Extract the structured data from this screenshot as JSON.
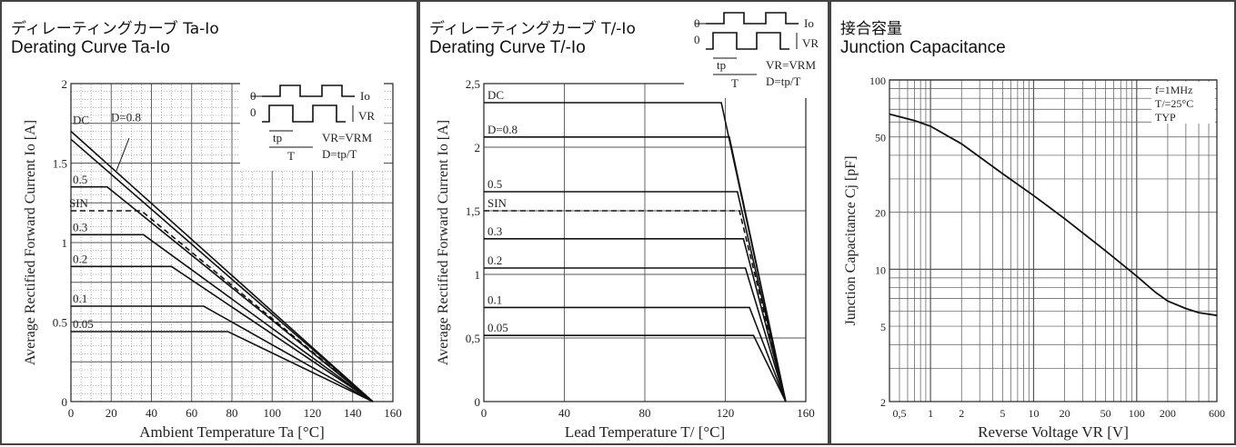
{
  "panels": {
    "ta": {
      "title_jp": "ディレーティングカーブ",
      "title_jp_suffix": "Ta-Io",
      "title_en": "Derating Curve Ta-Io"
    },
    "tl": {
      "title_jp": "ディレーティングカーブ",
      "title_jp_suffix": "T/-Io",
      "title_en": "Derating Curve T/-Io"
    },
    "cj": {
      "title_jp": "接合容量",
      "title_en": "Junction Capacitance"
    }
  },
  "inset": {
    "io": "Io",
    "vr": "VR",
    "tp": "tp",
    "t": "T",
    "zero": "0",
    "vr_eq": "VR=VRM",
    "d_eq": "D=tp/T"
  },
  "chart_data": [
    {
      "type": "line",
      "title": "Derating Curve Ta-Io",
      "xlabel": "Ambient Temperature  Ta [°C]",
      "ylabel": "Average Rectified Forward Current  Io [A]",
      "xlim": [
        0,
        160
      ],
      "ylim": [
        0,
        2
      ],
      "xticks": [
        0,
        20,
        40,
        60,
        80,
        100,
        120,
        140,
        160
      ],
      "yticks": [
        0,
        0.5,
        1,
        1.5,
        2
      ],
      "ytick_labels": [
        "0",
        "0.5",
        "1",
        "1.5",
        "2"
      ],
      "grid": true,
      "series": [
        {
          "name": "DC",
          "points": [
            [
              0,
              1.7
            ],
            [
              150,
              0
            ]
          ]
        },
        {
          "name": "D=0.8",
          "points": [
            [
              0,
              1.65
            ],
            [
              150,
              0
            ]
          ]
        },
        {
          "name": "0.5",
          "points": [
            [
              0,
              1.35
            ],
            [
              18,
              1.35
            ],
            [
              150,
              0
            ]
          ]
        },
        {
          "name": "SIN",
          "dashed": true,
          "points": [
            [
              0,
              1.2
            ],
            [
              35,
              1.2
            ],
            [
              150,
              0
            ]
          ]
        },
        {
          "name": "0.3",
          "points": [
            [
              0,
              1.05
            ],
            [
              36,
              1.05
            ],
            [
              150,
              0
            ]
          ]
        },
        {
          "name": "0.2",
          "points": [
            [
              0,
              0.85
            ],
            [
              50,
              0.85
            ],
            [
              150,
              0
            ]
          ]
        },
        {
          "name": "0.1",
          "points": [
            [
              0,
              0.6
            ],
            [
              66,
              0.6
            ],
            [
              150,
              0
            ]
          ]
        },
        {
          "name": "0.05",
          "points": [
            [
              0,
              0.44
            ],
            [
              78,
              0.44
            ],
            [
              150,
              0
            ]
          ]
        }
      ]
    },
    {
      "type": "line",
      "title": "Derating Curve T/-Io",
      "xlabel": "Lead Temperature  T/ [°C]",
      "ylabel": "Average Rectified Forward Current  Io [A]",
      "xlim": [
        0,
        160
      ],
      "ylim": [
        0,
        2.5
      ],
      "xticks": [
        0,
        40,
        80,
        120,
        160
      ],
      "yticks": [
        0,
        0.5,
        1,
        1.5,
        2,
        2.5
      ],
      "ytick_labels": [
        "0",
        "0,5",
        "1",
        "1,5",
        "2",
        "2,5"
      ],
      "grid": true,
      "series": [
        {
          "name": "DC",
          "points": [
            [
              0,
              2.35
            ],
            [
              118,
              2.35
            ],
            [
              150,
              0
            ]
          ]
        },
        {
          "name": "D=0.8",
          "points": [
            [
              0,
              2.08
            ],
            [
              122,
              2.08
            ],
            [
              150,
              0
            ]
          ]
        },
        {
          "name": "0.5",
          "points": [
            [
              0,
              1.65
            ],
            [
              126,
              1.65
            ],
            [
              150,
              0
            ]
          ]
        },
        {
          "name": "SIN",
          "dashed": true,
          "points": [
            [
              0,
              1.5
            ],
            [
              127,
              1.5
            ],
            [
              150,
              0
            ]
          ]
        },
        {
          "name": "0.3",
          "points": [
            [
              0,
              1.28
            ],
            [
              129,
              1.28
            ],
            [
              150,
              0
            ]
          ]
        },
        {
          "name": "0.2",
          "points": [
            [
              0,
              1.05
            ],
            [
              130,
              1.05
            ],
            [
              150,
              0
            ]
          ]
        },
        {
          "name": "0.1",
          "points": [
            [
              0,
              0.74
            ],
            [
              132,
              0.74
            ],
            [
              150,
              0
            ]
          ]
        },
        {
          "name": "0.05",
          "points": [
            [
              0,
              0.52
            ],
            [
              134,
              0.52
            ],
            [
              150,
              0
            ]
          ]
        }
      ]
    },
    {
      "type": "line",
      "title": "Junction Capacitance",
      "xlabel": "Reverse Voltage  VR [V]",
      "ylabel": "Junction Capacitance  Cj [pF]",
      "xscale": "log",
      "yscale": "log",
      "xlim": [
        0.4,
        600
      ],
      "ylim": [
        2,
        100
      ],
      "xticks": [
        0.5,
        1,
        2,
        5,
        10,
        20,
        50,
        100,
        200,
        600
      ],
      "xtick_labels": [
        "0,5",
        "1",
        "2",
        "5",
        "10",
        "20",
        "50",
        "100",
        "200",
        "600"
      ],
      "yticks": [
        2,
        5,
        10,
        20,
        50,
        100
      ],
      "grid": true,
      "annotations": [
        "f=1MHz",
        "T/=25°C",
        "TYP"
      ],
      "series": [
        {
          "name": "TYP",
          "points": [
            [
              0.4,
              66
            ],
            [
              0.7,
              61
            ],
            [
              1,
              57
            ],
            [
              2,
              46
            ],
            [
              5,
              32
            ],
            [
              10,
              24.5
            ],
            [
              20,
              18.5
            ],
            [
              50,
              12.5
            ],
            [
              100,
              9.2
            ],
            [
              150,
              7.6
            ],
            [
              200,
              6.8
            ],
            [
              300,
              6.2
            ],
            [
              400,
              5.9
            ],
            [
              600,
              5.7
            ]
          ]
        }
      ]
    }
  ]
}
